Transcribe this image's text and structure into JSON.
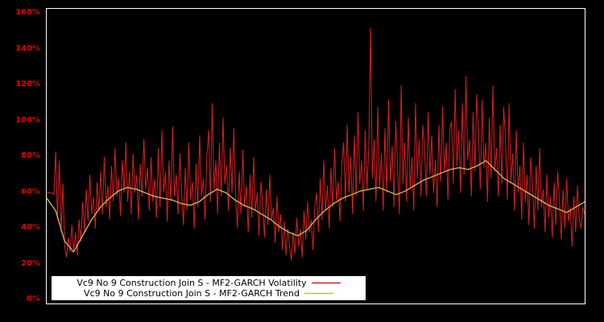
{
  "colors": {
    "background": "#000000",
    "frame_border": "#ffffff",
    "axis_label": "#dd0000",
    "volatility_line": "#d91f1f",
    "trend_line": "#c7b74f",
    "legend_background": "#ffffff",
    "legend_text": "#000000"
  },
  "chart_data": {
    "type": "line",
    "title": "",
    "xlabel": "",
    "ylabel": "",
    "ylim": [
      0,
      160
    ],
    "grid": false,
    "legend_position": "bottom-left-inside",
    "y_ticks": [
      "0%",
      "20%",
      "40%",
      "60%",
      "80%",
      "100%",
      "120%",
      "140%",
      "160%"
    ],
    "y_unit": "%",
    "series": [
      {
        "name": "Vc9 No 9 Construction Join S - MF2-GARCH Volatility",
        "color": "#d91f1f",
        "values": [
          60,
          60,
          60,
          60,
          59,
          83,
          45,
          78,
          38,
          65,
          30,
          24,
          35,
          27,
          42,
          28,
          38,
          25,
          45,
          33,
          55,
          38,
          62,
          44,
          70,
          48,
          58,
          40,
          66,
          50,
          72,
          48,
          80,
          52,
          64,
          45,
          75,
          55,
          85,
          58,
          68,
          47,
          78,
          60,
          88,
          55,
          72,
          48,
          82,
          60,
          70,
          45,
          76,
          58,
          90,
          62,
          74,
          50,
          80,
          55,
          68,
          46,
          85,
          52,
          95,
          60,
          72,
          44,
          78,
          55,
          97,
          58,
          70,
          48,
          82,
          60,
          42,
          74,
          50,
          88,
          56,
          66,
          40,
          76,
          52,
          92,
          58,
          68,
          45,
          80,
          95,
          55,
          110,
          62,
          78,
          48,
          88,
          58,
          102,
          65,
          75,
          50,
          85,
          60,
          96,
          58,
          40,
          72,
          48,
          84,
          52,
          64,
          38,
          70,
          46,
          80,
          50,
          60,
          36,
          66,
          55,
          35,
          62,
          42,
          70,
          45,
          52,
          32,
          58,
          38,
          48,
          28,
          44,
          25,
          40,
          30,
          22,
          38,
          26,
          46,
          30,
          40,
          24,
          50,
          34,
          55,
          38,
          45,
          28,
          52,
          60,
          38,
          68,
          45,
          78,
          50,
          64,
          40,
          74,
          52,
          85,
          56,
          66,
          44,
          76,
          88,
          55,
          98,
          60,
          80,
          48,
          92,
          58,
          105,
          65,
          78,
          50,
          95,
          62,
          85,
          152,
          68,
          90,
          55,
          108,
          62,
          82,
          50,
          96,
          60,
          112,
          66,
          86,
          52,
          100,
          75,
          48,
          120,
          65,
          88,
          55,
          102,
          62,
          80,
          50,
          110,
          68,
          90,
          58,
          98,
          85,
          58,
          105,
          70,
          92,
          60,
          78,
          52,
          98,
          66,
          108,
          72,
          88,
          56,
          95,
          100,
          65,
          118,
          75,
          95,
          60,
          110,
          70,
          125,
          78,
          90,
          58,
          105,
          72,
          115,
          95,
          62,
          112,
          74,
          88,
          55,
          102,
          68,
          120,
          72,
          85,
          58,
          98,
          65,
          108,
          90,
          56,
          110,
          66,
          82,
          50,
          95,
          60,
          75,
          45,
          88,
          55,
          70,
          42,
          80,
          65,
          40,
          75,
          50,
          85,
          52,
          62,
          38,
          70,
          46,
          58,
          35,
          66,
          42,
          72,
          55,
          34,
          62,
          40,
          68,
          44,
          52,
          30,
          58,
          38,
          64,
          45,
          40,
          52,
          48
        ]
      },
      {
        "name": "Vc9 No 9 Construction Join S - MF2-GARCH Trend",
        "color": "#c7b74f",
        "values": [
          57,
          50,
          33,
          27,
          36,
          45,
          52,
          57,
          61,
          63,
          62,
          60,
          58,
          57,
          56,
          54,
          53,
          55,
          59,
          62,
          60,
          56,
          53,
          51,
          48,
          45,
          41,
          38,
          36,
          39,
          45,
          50,
          54,
          57,
          59,
          61,
          62,
          63,
          61,
          59,
          61,
          64,
          67,
          69,
          71,
          73,
          74,
          73,
          75,
          78,
          73,
          68,
          65,
          62,
          59,
          56,
          53,
          51,
          49,
          52,
          55
        ]
      }
    ]
  },
  "legend": {
    "items": [
      {
        "label": "Vc9 No 9 Construction Join S - MF2-GARCH Volatility"
      },
      {
        "label": "Vc9 No 9 Construction Join S - MF2-GARCH Trend"
      }
    ]
  }
}
